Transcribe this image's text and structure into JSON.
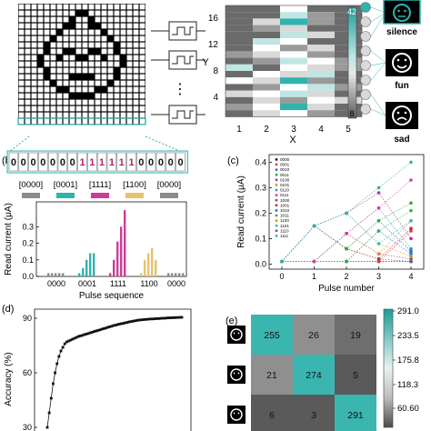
{
  "panels": {
    "b": "(b)",
    "c": "(c)",
    "d": "(d)",
    "e": "(e)"
  },
  "colors": {
    "teal": "#2fb3ad",
    "magenta": "#cc3d97",
    "gold": "#e6c26a",
    "gray": "#8a8a8a",
    "heat_dark": "#5f5f5f",
    "heat_light": "#f2f2f2",
    "cm_teal": "#3ab5b0"
  },
  "panel_a_grid": {
    "cols": 20,
    "rows": 19,
    "white_cells_rows": [
      "....................",
      ".........##.........",
      "........#..#........",
      ".......##..##.......",
      "......#......#......",
      ".....#........#.....",
      "....#..........#....",
      "....#..##..##..#....",
      "...#..#..##..#..#...",
      "...#............#...",
      "....#..........#....",
      "....#...####...#....",
      ".....#........#.....",
      "......##....##......",
      "........####........",
      "....................",
      "....................",
      "....................",
      "...................."
    ],
    "y_letter": "Y",
    "ellipsis": "⋮"
  },
  "panel_a_heatmap": {
    "y_ticks": [
      "16",
      "12",
      "8",
      "4"
    ],
    "x_ticks": [
      "1",
      "2",
      "3",
      "4",
      "5"
    ],
    "x_label": "X",
    "colorbar_top": "42",
    "colorbar_bottom": "8",
    "outputs": [
      "silence",
      "fun",
      "sad"
    ]
  },
  "panel_b": {
    "sequence": [
      "0",
      "0",
      "0",
      "0",
      "0",
      "0",
      "0",
      "1",
      "1",
      "1",
      "1",
      "1",
      "1",
      "0",
      "0",
      "0",
      "0",
      "0"
    ],
    "groups": [
      {
        "label": "[0000]",
        "color": "#8a8a8a"
      },
      {
        "label": "[0001]",
        "color": "#2fb3ad"
      },
      {
        "label": "[1111]",
        "color": "#cc3d97"
      },
      {
        "label": "[1100]",
        "color": "#e6c26a"
      },
      {
        "label": "[0000]",
        "color": "#8a8a8a"
      }
    ],
    "ylabel": "Read current (μA)",
    "xlabel": "Pulse sequence",
    "ytick_labels": [
      "0.0",
      "0.1",
      "0.2",
      "0.3"
    ],
    "xtick_labels": [
      "0000",
      "0001",
      "1111",
      "1100",
      "0000"
    ]
  },
  "chart_data": [
    {
      "type": "bar",
      "title": "",
      "xlabel": "Pulse sequence",
      "ylabel": "Read current (μA)",
      "ylim": [
        0,
        0.45
      ],
      "categories": [
        "0000",
        "0001",
        "1111",
        "1100",
        "0000"
      ],
      "series": [
        {
          "values": [
            [
              0.02,
              0.02,
              0.02,
              0.02,
              0.02
            ],
            [
              0.02,
              0.05,
              0.1,
              0.14,
              0.14
            ],
            [
              0.02,
              0.1,
              0.21,
              0.3,
              0.4
            ],
            [
              0.02,
              0.1,
              0.14,
              0.17,
              0.1
            ],
            [
              0.02,
              0.02,
              0.02,
              0.02,
              0.02
            ]
          ]
        }
      ]
    },
    {
      "type": "line",
      "xlabel": "Pulse number",
      "ylabel": "Read current (μA)",
      "x": [
        0,
        1,
        2,
        3,
        4
      ],
      "ylim": [
        -0.02,
        0.43
      ],
      "legend": [
        "0000",
        "0001",
        "0010",
        "0011",
        "0100",
        "0101",
        "0110",
        "0111",
        "1000",
        "1001",
        "1010",
        "1011",
        "1100",
        "1101",
        "1110",
        "1111"
      ],
      "series_values": [
        [
          0.01,
          0.01,
          0.01,
          0.01,
          0.01
        ],
        [
          0.01,
          0.01,
          0.01,
          0.01,
          0.13
        ],
        [
          0.01,
          0.01,
          0.01,
          0.13,
          0.04
        ],
        [
          0.01,
          0.01,
          0.01,
          0.13,
          0.21
        ],
        [
          0.01,
          0.01,
          0.12,
          0.04,
          0.02
        ],
        [
          0.01,
          0.01,
          0.12,
          0.04,
          0.17
        ],
        [
          0.01,
          0.01,
          0.12,
          0.22,
          0.06
        ],
        [
          0.01,
          0.01,
          0.12,
          0.22,
          0.33
        ],
        [
          0.01,
          0.15,
          0.06,
          0.02,
          0.01
        ],
        [
          0.01,
          0.15,
          0.06,
          0.02,
          0.14
        ],
        [
          0.01,
          0.15,
          0.06,
          0.17,
          0.05
        ],
        [
          0.01,
          0.15,
          0.06,
          0.17,
          0.24
        ],
        [
          0.01,
          0.15,
          0.2,
          0.08,
          0.03
        ],
        [
          0.01,
          0.15,
          0.2,
          0.08,
          0.17
        ],
        [
          0.01,
          0.15,
          0.2,
          0.28,
          0.1
        ],
        [
          0.01,
          0.15,
          0.2,
          0.3,
          0.4
        ]
      ],
      "xtick_labels": [
        "0",
        "1",
        "2",
        "3",
        "4"
      ],
      "ytick_labels": [
        "0.0",
        "0.1",
        "0.2",
        "0.3",
        "0.4"
      ]
    },
    {
      "type": "line",
      "xlabel": "",
      "ylabel": "Accuracy (%)",
      "ylim": [
        28,
        95
      ],
      "ytick_labels": [
        "90",
        "60",
        "30"
      ],
      "y": [
        30,
        38,
        46,
        54,
        60,
        65,
        69,
        72,
        74,
        76,
        77,
        77.5,
        78,
        78.5,
        79,
        79.5,
        80,
        80.3,
        80.6,
        81,
        81.3,
        81.6,
        82,
        82.3,
        82.7,
        83,
        83.3,
        83.6,
        84,
        84.3,
        84.6,
        85,
        85.3,
        85.6,
        86,
        86.2,
        86.5,
        86.8,
        87,
        87.2,
        87.5,
        87.7,
        88,
        88.2,
        88.4,
        88.6,
        88.8,
        89,
        89.1,
        89.2,
        89.3,
        89.4,
        89.5,
        89.6,
        89.6,
        89.7,
        89.8,
        89.8,
        89.9,
        90,
        90,
        90.1,
        90.2,
        90.2,
        90.3,
        90.3,
        90.4,
        90.4,
        90.5,
        90.5
      ]
    },
    {
      "type": "heatmap",
      "values": [
        [
          255,
          26,
          19
        ],
        [
          21,
          274,
          5
        ],
        [
          6,
          3,
          291
        ]
      ],
      "colorbar_ticks": [
        "291.0",
        "233.5",
        "175.8",
        "118.3",
        "60.60"
      ]
    }
  ]
}
